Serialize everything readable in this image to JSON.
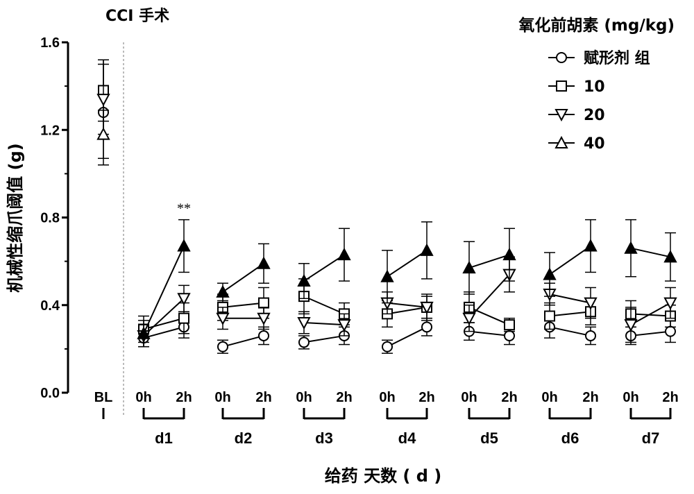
{
  "chart_data": {
    "type": "line",
    "surgery_label": "CCI 手术",
    "legend_title": "氧化前胡素 (mg/kg)",
    "ylabel": "机械性缩爪阈值 (g)",
    "xlabel": "给药 天数 ( d )",
    "ylim": [
      0.0,
      1.6
    ],
    "yticks": [
      "0.0",
      "0.4",
      "0.8",
      "1.2",
      "1.6"
    ],
    "ytick_values": [
      0.0,
      0.4,
      0.8,
      1.2,
      1.6
    ],
    "categories": [
      "BL",
      "0h",
      "2h",
      "0h",
      "2h",
      "0h",
      "2h",
      "0h",
      "2h",
      "0h",
      "2h",
      "0h",
      "2h",
      "0h",
      "2h"
    ],
    "day_labels": [
      "d1",
      "d2",
      "d3",
      "d4",
      "d5",
      "d6",
      "d7"
    ],
    "grid": false,
    "legend_position": "top-right",
    "annotations": [
      {
        "text": "**",
        "category_index": 2,
        "series": "40"
      }
    ],
    "series": [
      {
        "name": "赋形剂 组",
        "marker": "circle",
        "filled": false,
        "values": [
          1.28,
          0.25,
          0.3,
          0.21,
          0.26,
          0.23,
          0.26,
          0.21,
          0.3,
          0.28,
          0.26,
          0.3,
          0.26,
          0.26,
          0.28
        ],
        "errors": [
          0.24,
          0.04,
          0.05,
          0.03,
          0.04,
          0.03,
          0.04,
          0.03,
          0.04,
          0.04,
          0.04,
          0.05,
          0.04,
          0.04,
          0.05
        ]
      },
      {
        "name": "10",
        "marker": "square",
        "filled": false,
        "values": [
          1.38,
          0.29,
          0.34,
          0.39,
          0.41,
          0.44,
          0.36,
          0.36,
          0.39,
          0.39,
          0.31,
          0.35,
          0.37,
          0.36,
          0.35
        ],
        "errors": [
          0.14,
          0.06,
          0.07,
          0.06,
          0.07,
          0.08,
          0.05,
          0.06,
          0.06,
          0.07,
          0.03,
          0.06,
          0.06,
          0.06,
          0.05
        ]
      },
      {
        "name": "20",
        "marker": "triangle-down",
        "filled": false,
        "values": [
          1.34,
          0.26,
          0.43,
          0.34,
          0.34,
          0.32,
          0.31,
          0.41,
          0.39,
          0.34,
          0.54,
          0.45,
          0.41,
          0.31,
          0.41
        ],
        "errors": [
          0.16,
          0.05,
          0.06,
          0.05,
          0.05,
          0.05,
          0.05,
          0.05,
          0.05,
          0.06,
          0.08,
          0.05,
          0.07,
          0.08,
          0.07
        ]
      },
      {
        "name": "40",
        "marker": "triangle-up",
        "filled_from_index": 1,
        "values": [
          1.18,
          0.27,
          0.67,
          0.46,
          0.59,
          0.51,
          0.63,
          0.53,
          0.65,
          0.57,
          0.63,
          0.54,
          0.67,
          0.66,
          0.62
        ],
        "errors": [
          0.11,
          0.06,
          0.12,
          0.04,
          0.09,
          0.08,
          0.12,
          0.12,
          0.13,
          0.12,
          0.12,
          0.1,
          0.12,
          0.13,
          0.11
        ]
      }
    ]
  }
}
